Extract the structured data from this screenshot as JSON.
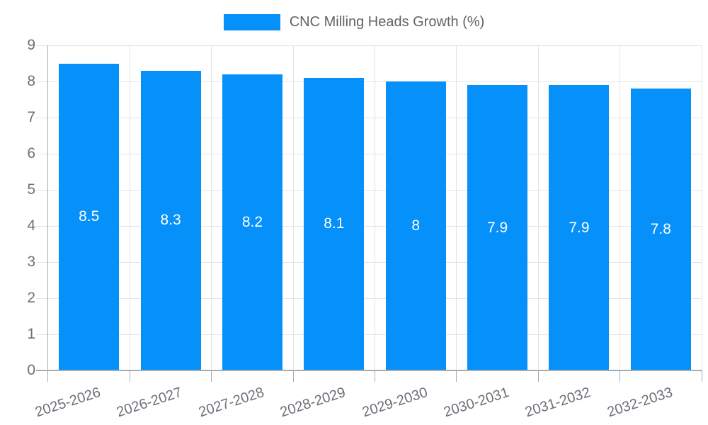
{
  "chart_data": {
    "type": "bar",
    "title": "CNC Milling Heads Growth (%)",
    "xlabel": "",
    "ylabel": "",
    "categories": [
      "2025-2026",
      "2026-2027",
      "2027-2028",
      "2028-2029",
      "2029-2030",
      "2030-2031",
      "2031-2032",
      "2032-2033"
    ],
    "values": [
      8.5,
      8.3,
      8.2,
      8.1,
      8,
      7.9,
      7.9,
      7.8
    ],
    "value_labels": [
      "8.5",
      "8.3",
      "8.2",
      "8.1",
      "8",
      "7.9",
      "7.9",
      "7.8"
    ],
    "y_ticks": [
      0,
      1,
      2,
      3,
      4,
      5,
      6,
      7,
      8,
      9
    ],
    "ylim": [
      0,
      9
    ],
    "grid": true,
    "legend_position": "top",
    "legend_entries": [
      "CNC Milling Heads Growth (%)"
    ],
    "colors": {
      "bar": "#0590FA",
      "value_label": "#FFFFFF",
      "axis_label": "#6E7079",
      "legend_text": "#5F6368",
      "grid_line": "#E4E4E4",
      "axis_line": "#A8ABB0",
      "background": "#FFFFFF"
    }
  }
}
